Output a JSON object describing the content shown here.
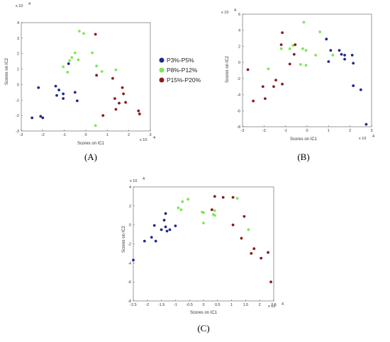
{
  "colors": {
    "P3%-P5%": "#1f2a8c",
    "P8%-P12%": "#7ee65a",
    "P15%-P20%": "#8b1a1a"
  },
  "legend": {
    "entries": [
      "P3%-P5%",
      "P8%-P12%",
      "P15%-P20%"
    ],
    "placement": "between-panels"
  },
  "chart_data": [
    {
      "type": "scatter",
      "panel_label_letter": "A",
      "panel_label": "(A)",
      "xlabel": "Scores on IC1",
      "ylabel": "Scores on IC2",
      "x_multiplier": "x 10",
      "y_multiplier": "x 10",
      "exponent": "4",
      "xlim": [
        -3,
        3
      ],
      "ylim": [
        -3,
        4
      ],
      "xticks": [
        "-3",
        "-2",
        "-1",
        "0",
        "1",
        "2",
        "3"
      ],
      "yticks": [
        "-3",
        "-2",
        "-1",
        "0",
        "1",
        "2",
        "3",
        "4"
      ],
      "series": [
        {
          "name": "P3%-P5%",
          "points": [
            [
              -2.5,
              -2.15
            ],
            [
              -2.2,
              -0.2
            ],
            [
              -2.1,
              -2.05
            ],
            [
              -2.0,
              -2.15
            ],
            [
              -1.4,
              -0.1
            ],
            [
              -1.35,
              -0.7
            ],
            [
              -1.25,
              -0.35
            ],
            [
              -1.05,
              -0.6
            ],
            [
              -1.05,
              -0.9
            ],
            [
              -0.8,
              1.35
            ],
            [
              -0.5,
              -0.5
            ],
            [
              -0.4,
              -1.05
            ]
          ]
        },
        {
          "name": "P8%-P12%",
          "points": [
            [
              -1.05,
              1.15
            ],
            [
              -0.85,
              0.8
            ],
            [
              -0.75,
              1.55
            ],
            [
              -0.65,
              1.75
            ],
            [
              -0.5,
              2.05
            ],
            [
              -0.35,
              1.6
            ],
            [
              -0.3,
              3.45
            ],
            [
              -0.1,
              3.3
            ],
            [
              0.3,
              2.05
            ],
            [
              0.45,
              -2.65
            ],
            [
              0.5,
              1.2
            ],
            [
              0.75,
              0.85
            ],
            [
              1.4,
              0.95
            ]
          ]
        },
        {
          "name": "P15%-P20%",
          "points": [
            [
              0.45,
              3.25
            ],
            [
              0.5,
              0.6
            ],
            [
              0.8,
              -2.0
            ],
            [
              1.25,
              0.4
            ],
            [
              1.35,
              -0.9
            ],
            [
              1.4,
              -1.6
            ],
            [
              1.55,
              -1.2
            ],
            [
              1.7,
              -0.2
            ],
            [
              1.75,
              -0.6
            ],
            [
              1.85,
              -1.15
            ],
            [
              2.45,
              -1.7
            ],
            [
              2.5,
              -1.9
            ]
          ]
        }
      ]
    },
    {
      "type": "scatter",
      "panel_label_letter": "B",
      "panel_label": "(B)",
      "xlabel": "Scores on IC1",
      "ylabel": "Scores on IC2",
      "x_multiplier": "x 10",
      "y_multiplier": "x 10",
      "exponent": "4",
      "xlim": [
        -3,
        3
      ],
      "ylim": [
        -8,
        6
      ],
      "xticks": [
        "-3",
        "-2",
        "-1",
        "0",
        "1",
        "2",
        "3"
      ],
      "yticks": [
        "-8",
        "-6",
        "-4",
        "-2",
        "0",
        "2",
        "4",
        "6"
      ],
      "series": [
        {
          "name": "P3%-P5%",
          "points": [
            [
              0.9,
              2.9
            ],
            [
              1.0,
              0.1
            ],
            [
              1.1,
              1.5
            ],
            [
              1.5,
              1.5
            ],
            [
              1.6,
              1.0
            ],
            [
              1.75,
              0.9
            ],
            [
              1.75,
              0.4
            ],
            [
              2.1,
              0.9
            ],
            [
              2.15,
              -0.1
            ],
            [
              2.15,
              -2.9
            ],
            [
              2.5,
              -3.4
            ],
            [
              2.75,
              -7.7
            ]
          ]
        },
        {
          "name": "P8%-P12%",
          "points": [
            [
              -1.8,
              -0.8
            ],
            [
              -1.2,
              1.7
            ],
            [
              -0.8,
              1.7
            ],
            [
              -0.65,
              2.1
            ],
            [
              -0.3,
              -0.25
            ],
            [
              -0.2,
              1.7
            ],
            [
              -0.15,
              5.0
            ],
            [
              -0.05,
              -0.35
            ],
            [
              -0.05,
              1.5
            ],
            [
              0.4,
              0.9
            ],
            [
              0.6,
              3.8
            ],
            [
              1.2,
              0.9
            ]
          ]
        },
        {
          "name": "P15%-P20%",
          "points": [
            [
              -2.75,
              -0.9
            ],
            [
              -2.5,
              -4.8
            ],
            [
              -2.05,
              -3.0
            ],
            [
              -1.95,
              -4.5
            ],
            [
              -1.55,
              -3.0
            ],
            [
              -1.45,
              -2.2
            ],
            [
              -1.2,
              2.2
            ],
            [
              -1.15,
              3.7
            ],
            [
              -1.15,
              -2.7
            ],
            [
              -0.8,
              -0.2
            ],
            [
              -0.6,
              1.0
            ],
            [
              -0.55,
              2.2
            ]
          ]
        }
      ]
    },
    {
      "type": "scatter",
      "panel_label_letter": "C",
      "panel_label": "(C)",
      "xlabel": "Scores on IC1",
      "ylabel": "Scores on IC2",
      "x_multiplier": "x 10",
      "y_multiplier": "x 10",
      "exponent": "4",
      "xlim": [
        -2.5,
        2.5
      ],
      "ylim": [
        -8,
        4
      ],
      "xticks": [
        "-2.5",
        "-2",
        "-1.5",
        "-1",
        "-0.5",
        "0",
        "0.5",
        "1",
        "1.5",
        "2",
        "2.5"
      ],
      "yticks": [
        "-8",
        "-6",
        "-4",
        "-2",
        "0",
        "2",
        "4"
      ],
      "series": [
        {
          "name": "P3%-P5%",
          "points": [
            [
              -2.5,
              -3.7
            ],
            [
              -2.1,
              -1.7
            ],
            [
              -1.85,
              -1.3
            ],
            [
              -1.75,
              -0.05
            ],
            [
              -1.7,
              -1.7
            ],
            [
              -1.5,
              -0.5
            ],
            [
              -1.4,
              0.5
            ],
            [
              -1.35,
              1.2
            ],
            [
              -1.35,
              -0.2
            ],
            [
              -1.3,
              -0.65
            ],
            [
              -1.2,
              -0.5
            ],
            [
              -1.0,
              -0.1
            ]
          ]
        },
        {
          "name": "P8%-P12%",
          "points": [
            [
              -0.9,
              1.8
            ],
            [
              -0.8,
              1.6
            ],
            [
              -0.75,
              2.45
            ],
            [
              -0.55,
              2.7
            ],
            [
              -0.05,
              1.35
            ],
            [
              0.0,
              1.3
            ],
            [
              0.0,
              0.2
            ],
            [
              0.35,
              1.1
            ],
            [
              0.4,
              1.5
            ],
            [
              0.4,
              1.0
            ],
            [
              1.2,
              2.8
            ],
            [
              1.6,
              -0.5
            ]
          ]
        },
        {
          "name": "P15%-P20%",
          "points": [
            [
              0.3,
              1.6
            ],
            [
              0.4,
              3.0
            ],
            [
              0.7,
              2.9
            ],
            [
              1.05,
              2.9
            ],
            [
              1.05,
              0.0
            ],
            [
              1.35,
              -1.4
            ],
            [
              1.45,
              0.9
            ],
            [
              1.7,
              -3.0
            ],
            [
              1.8,
              -2.5
            ],
            [
              2.05,
              -3.5
            ],
            [
              2.3,
              -2.9
            ],
            [
              2.4,
              -6.0
            ]
          ]
        }
      ]
    }
  ]
}
